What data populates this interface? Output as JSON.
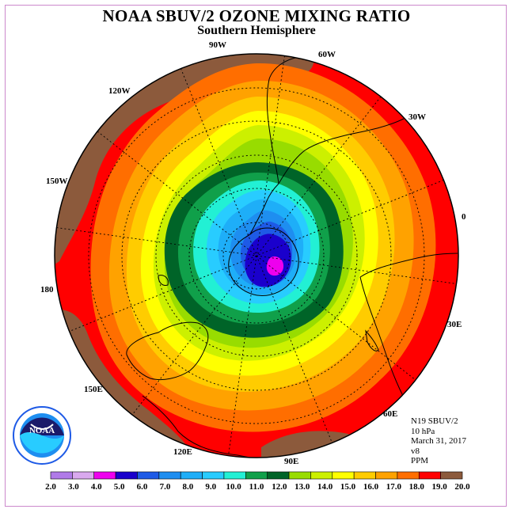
{
  "title": "NOAA SBUV/2 OZONE MIXING RATIO",
  "subtitle": "Southern Hemisphere",
  "logo_text": "NOAA",
  "longitude_labels": {
    "lon_90w": "90W",
    "lon_60w": "60W",
    "lon_30w": "30W",
    "lon_0": "0",
    "lon_30e": "30E",
    "lon_60e": "60E",
    "lon_90e": "90E",
    "lon_120e": "120E",
    "lon_150e": "150E",
    "lon_180": "180",
    "lon_150w": "150W",
    "lon_120w": "120W"
  },
  "info": {
    "instrument": "N19 SBUV/2",
    "pressure": "10 hPa",
    "date": "March 31, 2017",
    "version": "v8",
    "units": "PPM"
  },
  "colorbar": {
    "ticks": [
      "2.0",
      "3.0",
      "4.0",
      "5.0",
      "6.0",
      "7.0",
      "8.0",
      "9.0",
      "10.0",
      "11.0",
      "12.0",
      "13.0",
      "14.0",
      "15.0",
      "16.0",
      "17.0",
      "18.0",
      "19.0",
      "20.0"
    ],
    "colors": [
      "#b07ae8",
      "#d9a9ee",
      "#ee00ee",
      "#1a00cc",
      "#1e5ae6",
      "#1e8ef0",
      "#1eaef8",
      "#28ccff",
      "#22f0d4",
      "#10a04a",
      "#006428",
      "#98dc00",
      "#ccf000",
      "#ffff00",
      "#ffcc00",
      "#ffa200",
      "#ff6e00",
      "#ff0000",
      "#8c5a3c"
    ]
  },
  "map_colors": {
    "brown": "#8c5a3c",
    "red": "#ff0000",
    "orange_red": "#ff6e00",
    "orange": "#ffa200",
    "amber": "#ffcc00",
    "yellow": "#ffff00",
    "yellow_green": "#ccf000",
    "lime": "#98dc00",
    "dark_green": "#006428",
    "green": "#10a04a",
    "cyan": "#22f0d4",
    "sky": "#28ccff",
    "light_blue": "#1eaef8",
    "blue": "#1e8ef0",
    "mid_blue": "#1e5ae6",
    "dark_blue": "#1a00cc",
    "magenta": "#ee00ee"
  }
}
